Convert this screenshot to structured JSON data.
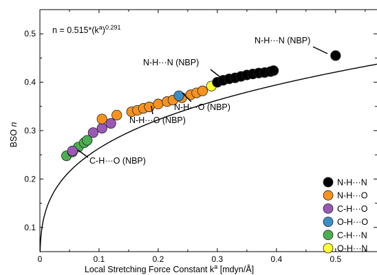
{
  "chart_data": {
    "type": "scatter",
    "xlabel_prefix": "Local Stretching Force Constant k",
    "xlabel_sup": "a",
    "xlabel_suffix": " [mdyn/Å]",
    "ylabel_main": "BSO ",
    "ylabel_italic": "n",
    "xlim": [
      0,
      0.57
    ],
    "ylim": [
      0.05,
      0.55
    ],
    "xticks": [
      0,
      0.1,
      0.2,
      0.3,
      0.4,
      0.5
    ],
    "xtick_labels": [
      "0",
      "0.1",
      "0.2",
      "0.3",
      "0.4",
      "0.5"
    ],
    "yticks": [
      0.1,
      0.2,
      0.3,
      0.4,
      0.5
    ],
    "ytick_labels": [
      "0.1",
      "0.2",
      "0.3",
      "0.4",
      "0.5"
    ],
    "grid": false,
    "legend_position": "bottom-right",
    "equation": {
      "prefix": "n = 0.515*(k",
      "sup1": "a",
      "mid": ")",
      "sup2": "0.291",
      "coefficient": 0.515,
      "exponent": 0.291
    },
    "series": [
      {
        "name": "N-H···N",
        "color": "#000000",
        "x": [
          0.3,
          0.31,
          0.32,
          0.33,
          0.34,
          0.35,
          0.36,
          0.37,
          0.38,
          0.39,
          0.395,
          0.5
        ],
        "y": [
          0.4,
          0.404,
          0.407,
          0.409,
          0.412,
          0.415,
          0.417,
          0.419,
          0.42,
          0.422,
          0.424,
          0.455
        ]
      },
      {
        "name": "N-H···O",
        "color": "#f7921e",
        "x": [
          0.105,
          0.13,
          0.155,
          0.165,
          0.175,
          0.185,
          0.2,
          0.215,
          0.225,
          0.24,
          0.255,
          0.265,
          0.275
        ],
        "y": [
          0.324,
          0.332,
          0.339,
          0.342,
          0.346,
          0.349,
          0.355,
          0.36,
          0.363,
          0.368,
          0.374,
          0.378,
          0.382
        ]
      },
      {
        "name": "C-H···O",
        "color": "#9b59b6",
        "x": [
          0.055,
          0.09,
          0.105,
          0.12
        ],
        "y": [
          0.258,
          0.296,
          0.305,
          0.315
        ]
      },
      {
        "name": "O-H···O",
        "color": "#3a8fc4",
        "x": [
          0.235
        ],
        "y": [
          0.372
        ]
      },
      {
        "name": "C-H···N",
        "color": "#4caf50",
        "x": [
          0.045,
          0.055,
          0.065,
          0.075,
          0.08
        ],
        "y": [
          0.248,
          0.256,
          0.266,
          0.275,
          0.28
        ]
      },
      {
        "name": "O-H···N",
        "color": "#ffff33",
        "x": [
          0.29
        ],
        "y": [
          0.392
        ]
      }
    ],
    "annotations": [
      {
        "text": "N-H···N (NBP)",
        "x": 0.5,
        "y": 0.455
      },
      {
        "text": "N-H···N (NBP)",
        "x": 0.31,
        "y": 0.395
      },
      {
        "text": "N-H···O (NBP)",
        "x": 0.235,
        "y": 0.37
      },
      {
        "text": "N-H···O (NBP)",
        "x": 0.205,
        "y": 0.35
      },
      {
        "text": "C-H···O (NBP)",
        "x": 0.05,
        "y": 0.255
      }
    ]
  }
}
